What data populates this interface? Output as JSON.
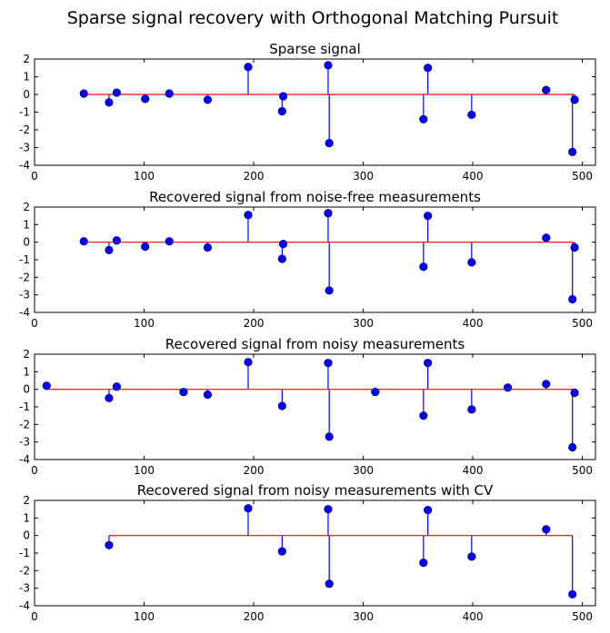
{
  "figure": {
    "suptitle": "Sparse signal recovery with Orthogonal Matching Pursuit",
    "colors": {
      "stem": "#0000ff",
      "marker": "#0000ff",
      "marker_edge": "#000080",
      "baseline": "#ff0000",
      "axes": "#000000"
    }
  },
  "chart_data": [
    {
      "type": "stem",
      "title": "Sparse signal",
      "xlabel": "",
      "ylabel": "",
      "xlim": [
        0,
        512
      ],
      "ylim": [
        -4,
        2
      ],
      "xticks": [
        0,
        100,
        200,
        300,
        400,
        500
      ],
      "yticks": [
        -4,
        -3,
        -2,
        -1,
        0,
        1,
        2
      ],
      "baseline": [
        45,
        493
      ],
      "x": [
        45,
        68,
        75,
        101,
        123,
        158,
        195,
        226,
        227,
        268,
        269,
        355,
        359,
        399,
        467,
        491,
        493
      ],
      "values": [
        0.05,
        -0.45,
        0.1,
        -0.25,
        0.05,
        -0.3,
        1.55,
        -0.95,
        -0.1,
        1.65,
        -2.75,
        -1.4,
        1.5,
        -1.15,
        0.25,
        -3.25,
        -0.3
      ]
    },
    {
      "type": "stem",
      "title": "Recovered signal from noise-free measurements",
      "xlabel": "",
      "ylabel": "",
      "xlim": [
        0,
        512
      ],
      "ylim": [
        -4,
        2
      ],
      "xticks": [
        0,
        100,
        200,
        300,
        400,
        500
      ],
      "yticks": [
        -4,
        -3,
        -2,
        -1,
        0,
        1,
        2
      ],
      "baseline": [
        45,
        493
      ],
      "x": [
        45,
        68,
        75,
        101,
        123,
        158,
        195,
        226,
        227,
        268,
        269,
        355,
        359,
        399,
        467,
        491,
        493
      ],
      "values": [
        0.05,
        -0.45,
        0.1,
        -0.25,
        0.05,
        -0.3,
        1.55,
        -0.95,
        -0.1,
        1.65,
        -2.75,
        -1.4,
        1.5,
        -1.15,
        0.25,
        -3.25,
        -0.3
      ]
    },
    {
      "type": "stem",
      "title": "Recovered signal from noisy measurements",
      "xlabel": "",
      "ylabel": "",
      "xlim": [
        0,
        512
      ],
      "ylim": [
        -4,
        2
      ],
      "xticks": [
        0,
        100,
        200,
        300,
        400,
        500
      ],
      "yticks": [
        -4,
        -3,
        -2,
        -1,
        0,
        1,
        2
      ],
      "baseline": [
        11,
        493
      ],
      "x": [
        11,
        68,
        75,
        136,
        158,
        195,
        226,
        268,
        269,
        311,
        355,
        359,
        399,
        432,
        467,
        491,
        493
      ],
      "values": [
        0.2,
        -0.5,
        0.15,
        -0.15,
        -0.3,
        1.55,
        -0.95,
        1.5,
        -2.7,
        -0.15,
        -1.5,
        1.5,
        -1.15,
        0.1,
        0.3,
        -3.3,
        -0.2
      ]
    },
    {
      "type": "stem",
      "title": "Recovered signal from noisy measurements with CV",
      "xlabel": "",
      "ylabel": "",
      "xlim": [
        0,
        512
      ],
      "ylim": [
        -4,
        2
      ],
      "xticks": [
        0,
        100,
        200,
        300,
        400,
        500
      ],
      "yticks": [
        -4,
        -3,
        -2,
        -1,
        0,
        1,
        2
      ],
      "baseline": [
        68,
        491
      ],
      "x": [
        68,
        195,
        226,
        268,
        269,
        355,
        359,
        399,
        467,
        491
      ],
      "values": [
        -0.55,
        1.55,
        -0.9,
        1.5,
        -2.75,
        -1.55,
        1.45,
        -1.2,
        0.35,
        -3.35
      ]
    }
  ]
}
